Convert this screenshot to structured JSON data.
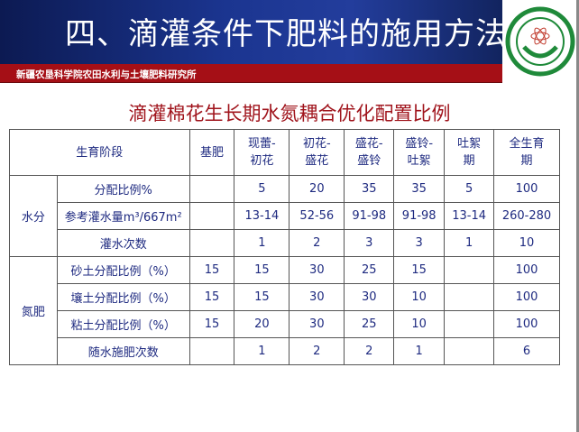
{
  "header": {
    "title": "四、滴灌条件下肥料的施用方法",
    "institute": "新疆农垦科学院农田水利与土壤肥料研究所",
    "logo_text": "新疆农垦科学院"
  },
  "subtitle": "滴灌棉花生长期水氮耦合优化配置比例",
  "table": {
    "columns": [
      "生育阶段",
      "基肥",
      "现蕾-初花",
      "初花-盛花",
      "盛花-盛铃",
      "盛铃-吐絮",
      "吐絮期",
      "全生育期"
    ],
    "groups": [
      {
        "name": "水分",
        "rows": [
          {
            "label": "分配比例%",
            "values": [
              "",
              "5",
              "20",
              "35",
              "35",
              "5",
              "100"
            ]
          },
          {
            "label": "参考灌水量m³/667m²",
            "values": [
              "",
              "13-14",
              "52-56",
              "91-98",
              "91-98",
              "13-14",
              "260-280"
            ]
          },
          {
            "label": "灌水次数",
            "values": [
              "",
              "1",
              "2",
              "3",
              "3",
              "1",
              "10"
            ]
          }
        ]
      },
      {
        "name": "氮肥",
        "rows": [
          {
            "label": "砂土分配比例（%）",
            "values": [
              "15",
              "15",
              "30",
              "25",
              "15",
              "",
              "100"
            ]
          },
          {
            "label": "壤土分配比例（%）",
            "values": [
              "15",
              "15",
              "30",
              "30",
              "10",
              "",
              "100"
            ]
          },
          {
            "label": "粘土分配比例（%）",
            "values": [
              "15",
              "20",
              "30",
              "25",
              "10",
              "",
              "100"
            ]
          },
          {
            "label": "随水施肥次数",
            "values": [
              "",
              "1",
              "2",
              "2",
              "1",
              "",
              "6"
            ]
          }
        ]
      }
    ]
  },
  "colors": {
    "header_blue": "#1b3590",
    "band_red": "#a50f16",
    "text_blue": "#1e2a80",
    "subtitle_red": "#a0141c"
  }
}
